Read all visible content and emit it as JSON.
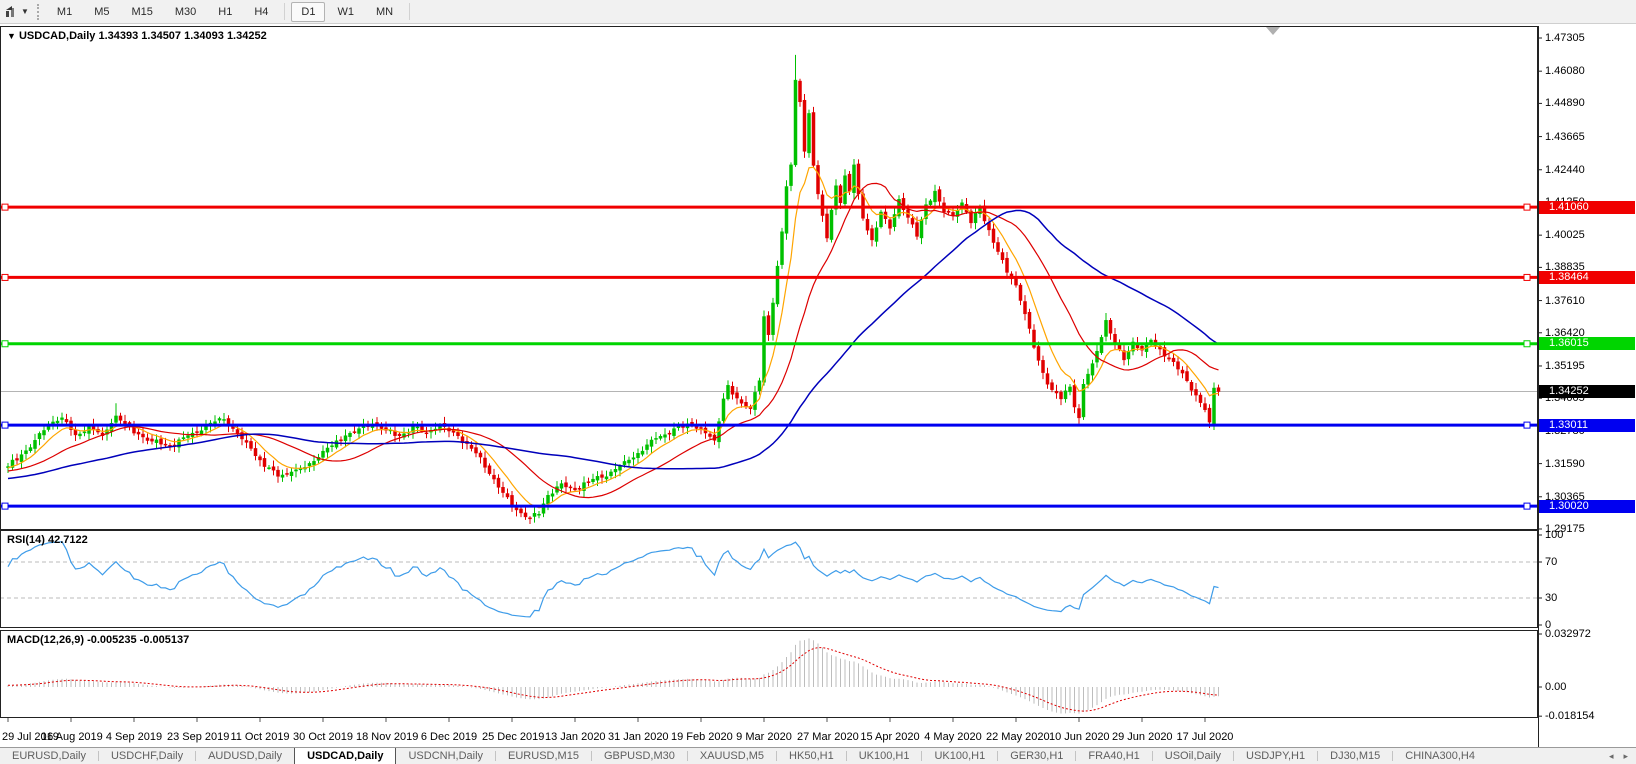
{
  "toolbar": {
    "timeframes": [
      "M1",
      "M5",
      "M15",
      "M30",
      "H1",
      "H4",
      "D1",
      "W1",
      "MN"
    ],
    "active_timeframe": "D1"
  },
  "chart": {
    "title_symbol": "USDCAD,Daily",
    "ohlc": {
      "open": "1.34393",
      "high": "1.34507",
      "low": "1.34093",
      "close": "1.34252"
    },
    "collapse_glyph": "▼"
  },
  "chart_data": {
    "type": "candlestick",
    "symbol": "USDCAD",
    "timeframe": "Daily",
    "current_bar": {
      "open": 1.34393,
      "high": 1.34507,
      "low": 1.34093,
      "close": 1.34252
    },
    "up_color": "#00C000",
    "down_color": "#E00000",
    "y_axis": {
      "top": 1.47305,
      "bottom": 1.29175,
      "ticks": [
        "1.47305",
        "1.46080",
        "1.44890",
        "1.43665",
        "1.42440",
        "1.41250",
        "1.40025",
        "1.38835",
        "1.37610",
        "1.36420",
        "1.35195",
        "1.34005",
        "1.32780",
        "1.31590",
        "1.30365",
        "1.29175"
      ]
    },
    "x_axis": {
      "bar_count": 270,
      "bars_per_label": 14,
      "date_labels": [
        "29 Jul 2019",
        "16 Aug 2019",
        "4 Sep 2019",
        "23 Sep 2019",
        "11 Oct 2019",
        "30 Oct 2019",
        "18 Nov 2019",
        "6 Dec 2019",
        "25 Dec 2019",
        "13 Jan 2020",
        "31 Jan 2020",
        "19 Feb 2020",
        "9 Mar 2020",
        "27 Mar 2020",
        "15 Apr 2020",
        "4 May 2020",
        "22 May 2020",
        "10 Jun 2020",
        "29 Jun 2020",
        "17 Jul 2020"
      ]
    },
    "horizontal_lines": [
      {
        "price": 1.4106,
        "label": "1.41060",
        "color": "#F00000",
        "width": 3
      },
      {
        "price": 1.38464,
        "label": "1.38464",
        "color": "#F00000",
        "width": 3
      },
      {
        "price": 1.36015,
        "label": "1.36015",
        "color": "#00D500",
        "width": 3
      },
      {
        "price": 1.33011,
        "label": "1.33011",
        "color": "#0000F0",
        "width": 3
      },
      {
        "price": 1.3002,
        "label": "1.30020",
        "color": "#0000F0",
        "width": 3
      }
    ],
    "current_price": {
      "value": 1.34252,
      "label": "1.34252",
      "line_color": "#b4b4b4",
      "label_bg": "#000000"
    },
    "moving_averages": [
      {
        "name": "fast",
        "type": "ema",
        "period": 8,
        "color": "#FFA500",
        "width": 1.2
      },
      {
        "name": "mid",
        "type": "sma",
        "period": 21,
        "color": "#DD0000",
        "width": 1.2
      },
      {
        "name": "slow",
        "type": "sma",
        "period": 55,
        "color": "#0000BB",
        "width": 1.5
      }
    ],
    "price_anchors": [
      [
        0,
        1.3148
      ],
      [
        3,
        1.3192
      ],
      [
        6,
        1.3245
      ],
      [
        9,
        1.3305
      ],
      [
        12,
        1.3328
      ],
      [
        15,
        1.3265
      ],
      [
        18,
        1.3298
      ],
      [
        21,
        1.3262
      ],
      [
        24,
        1.3335
      ],
      [
        26,
        1.3305
      ],
      [
        29,
        1.3268
      ],
      [
        32,
        1.3242
      ],
      [
        36,
        1.3222
      ],
      [
        40,
        1.3262
      ],
      [
        44,
        1.3298
      ],
      [
        48,
        1.3322
      ],
      [
        51,
        1.3268
      ],
      [
        54,
        1.3215
      ],
      [
        57,
        1.3148
      ],
      [
        60,
        1.3112
      ],
      [
        63,
        1.3128
      ],
      [
        66,
        1.3145
      ],
      [
        69,
        1.3182
      ],
      [
        72,
        1.3225
      ],
      [
        75,
        1.3262
      ],
      [
        78,
        1.3288
      ],
      [
        81,
        1.3305
      ],
      [
        84,
        1.3282
      ],
      [
        87,
        1.3262
      ],
      [
        90,
        1.3295
      ],
      [
        93,
        1.3272
      ],
      [
        96,
        1.3302
      ],
      [
        100,
        1.3262
      ],
      [
        104,
        1.3198
      ],
      [
        107,
        1.3122
      ],
      [
        110,
        1.3052
      ],
      [
        113,
        1.2988
      ],
      [
        116,
        1.2958
      ],
      [
        118,
        1.2972
      ],
      [
        120,
        1.3042
      ],
      [
        123,
        1.3085
      ],
      [
        126,
        1.3062
      ],
      [
        129,
        1.3092
      ],
      [
        132,
        1.3108
      ],
      [
        135,
        1.3138
      ],
      [
        138,
        1.3172
      ],
      [
        141,
        1.3205
      ],
      [
        144,
        1.3252
      ],
      [
        148,
        1.3288
      ],
      [
        152,
        1.3305
      ],
      [
        155,
        1.3272
      ],
      [
        157,
        1.3245
      ],
      [
        159,
        1.3398
      ],
      [
        160,
        1.3448
      ],
      [
        161,
        1.3415
      ],
      [
        163,
        1.3382
      ],
      [
        165,
        1.3362
      ],
      [
        166,
        1.3422
      ],
      [
        167,
        1.3465
      ],
      [
        168,
        1.3702
      ],
      [
        169,
        1.3635
      ],
      [
        170,
        1.3752
      ],
      [
        171,
        1.3888
      ],
      [
        172,
        1.4015
      ],
      [
        173,
        1.4182
      ],
      [
        174,
        1.4262
      ],
      [
        175,
        1.4575
      ],
      [
        176,
        1.4495
      ],
      [
        177,
        1.4312
      ],
      [
        178,
        1.4452
      ],
      [
        179,
        1.426
      ],
      [
        180,
        1.4155
      ],
      [
        181,
        1.4075
      ],
      [
        182,
        1.3992
      ],
      [
        183,
        1.4095
      ],
      [
        184,
        1.4185
      ],
      [
        185,
        1.4122
      ],
      [
        186,
        1.4222
      ],
      [
        187,
        1.4165
      ],
      [
        188,
        1.4262
      ],
      [
        189,
        1.4155
      ],
      [
        190,
        1.4065
      ],
      [
        192,
        1.3985
      ],
      [
        194,
        1.4088
      ],
      [
        196,
        1.4028
      ],
      [
        198,
        1.4135
      ],
      [
        200,
        1.4068
      ],
      [
        202,
        1.3998
      ],
      [
        204,
        1.4115
      ],
      [
        206,
        1.4165
      ],
      [
        208,
        1.4088
      ],
      [
        210,
        1.4075
      ],
      [
        212,
        1.4122
      ],
      [
        214,
        1.4048
      ],
      [
        216,
        1.4105
      ],
      [
        218,
        1.4022
      ],
      [
        220,
        1.3942
      ],
      [
        222,
        1.3865
      ],
      [
        224,
        1.3818
      ],
      [
        226,
        1.3712
      ],
      [
        228,
        1.3588
      ],
      [
        230,
        1.3495
      ],
      [
        232,
        1.3432
      ],
      [
        234,
        1.3398
      ],
      [
        236,
        1.3442
      ],
      [
        237,
        1.3368
      ],
      [
        238,
        1.3328
      ],
      [
        239,
        1.3452
      ],
      [
        241,
        1.3528
      ],
      [
        244,
        1.3688
      ],
      [
        246,
        1.3598
      ],
      [
        248,
        1.3542
      ],
      [
        250,
        1.3608
      ],
      [
        252,
        1.3578
      ],
      [
        254,
        1.3615
      ],
      [
        256,
        1.3582
      ],
      [
        258,
        1.3545
      ],
      [
        260,
        1.3508
      ],
      [
        262,
        1.3465
      ],
      [
        264,
        1.3412
      ],
      [
        266,
        1.3358
      ],
      [
        267,
        1.3312
      ],
      [
        268,
        1.3438
      ],
      [
        269,
        1.34252
      ]
    ],
    "high_overrides": [
      [
        24,
        1.3382
      ],
      [
        175,
        1.4668
      ],
      [
        244,
        1.3715
      ]
    ],
    "low_overrides": [
      [
        116,
        1.2952
      ],
      [
        238,
        1.3315
      ],
      [
        267,
        1.3301
      ]
    ],
    "rsi": {
      "label": "RSI(14) 42.7122",
      "period": 14,
      "value": 42.7122,
      "levels": [
        70,
        30
      ],
      "scale": [
        "100",
        "70",
        "30",
        "0"
      ],
      "scale_values": [
        100,
        70,
        30,
        0
      ],
      "color": "#3E9CE9"
    },
    "macd": {
      "label": "MACD(12,26,9) -0.005235 -0.005137",
      "fast": 12,
      "slow": 26,
      "signal": 9,
      "value": -0.005235,
      "signal_value": -0.005137,
      "scale": [
        "0.032972",
        "0.00",
        "-0.018154"
      ],
      "scale_values": [
        0.032972,
        0,
        -0.018154
      ],
      "hist_color": "#BDBDBD",
      "signal_color": "#E00000"
    }
  },
  "tabs": {
    "items": [
      "EURUSD,Daily",
      "USDCHF,Daily",
      "AUDUSD,Daily",
      "USDCAD,Daily",
      "USDCNH,Daily",
      "EURUSD,M15",
      "GBPUSD,M30",
      "XAUUSD,M5",
      "HK50,H1",
      "UK100,H1",
      "UK100,H1",
      "GER30,H1",
      "FRA40,H1",
      "USOil,Daily",
      "USDJPY,H1",
      "DJ30,M15",
      "CHINA300,H4"
    ],
    "active_index": 3,
    "scroll_left_glyph": "◂",
    "scroll_right_glyph": "▸"
  }
}
